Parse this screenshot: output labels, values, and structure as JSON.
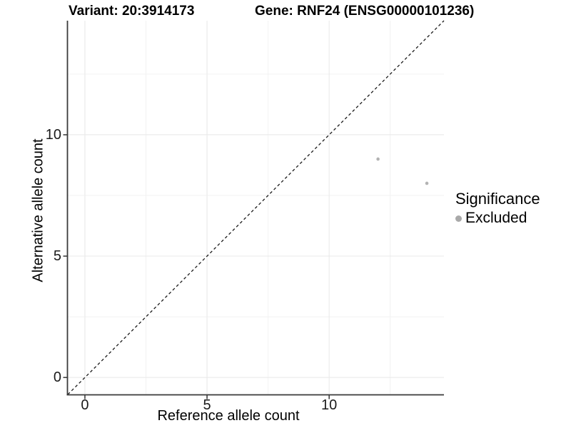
{
  "chart_data": {
    "type": "scatter",
    "titles": {
      "left": "Variant: 20:3914173",
      "right": "Gene: RNF24 (ENSG00000101236)"
    },
    "xlabel": "Reference allele count",
    "ylabel": "Alternative allele count",
    "xlim": [
      -0.7,
      14.7
    ],
    "ylim": [
      -0.7,
      14.7
    ],
    "x_ticks": [
      0,
      5,
      10
    ],
    "y_ticks": [
      0,
      5,
      10
    ],
    "x_minor_gridlines": [
      2.5,
      7.5,
      12.5
    ],
    "y_minor_gridlines": [
      2.5,
      7.5,
      12.5
    ],
    "grid": "on",
    "identity_line": {
      "style": "dashed",
      "equation": "y = x",
      "from": [
        -0.7,
        -0.7
      ],
      "to": [
        14.7,
        14.7
      ]
    },
    "series": [
      {
        "name": "Excluded",
        "color": "#b3b3b3",
        "points": [
          {
            "x": 12,
            "y": 9
          },
          {
            "x": 14,
            "y": 8
          }
        ]
      }
    ],
    "legend": {
      "title": "Significance",
      "position": "right",
      "entries": [
        {
          "label": "Excluded",
          "color": "#a9a9a9"
        }
      ]
    }
  },
  "colors": {
    "background": "#ffffff",
    "axis_line": "#3a3a3a",
    "tick_mark": "#333333",
    "tick_label": "#1a1a1a",
    "grid_major": "#e8e8e8",
    "grid_minor": "#f2f2f2",
    "identity_line": "#1a1a1a"
  }
}
